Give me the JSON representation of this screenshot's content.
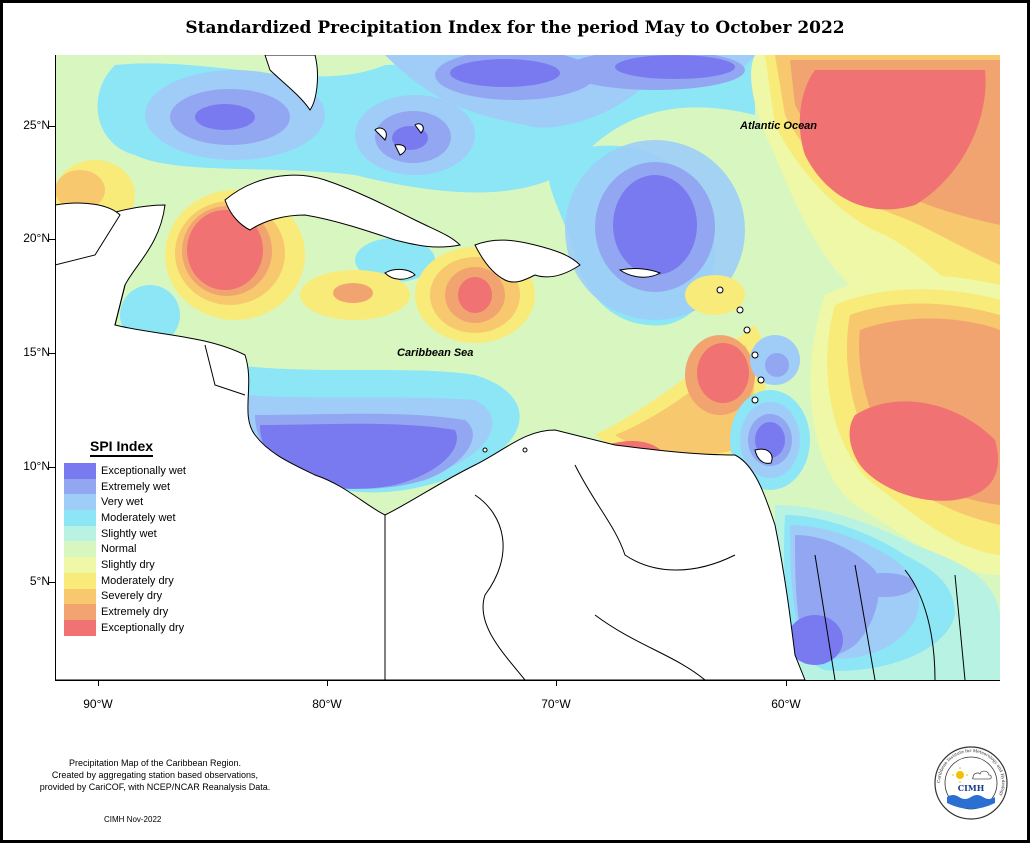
{
  "title": "Standardized Precipitation Index for the period May to October 2022",
  "map": {
    "ocean_labels": [
      "Atlantic Ocean",
      "Caribbean Sea"
    ],
    "lat_labels": [
      "25°N",
      "20°N",
      "15°N",
      "10°N",
      "5°N"
    ],
    "lon_labels": [
      "90°W",
      "80°W",
      "70°W",
      "60°W"
    ]
  },
  "legend": {
    "title": "SPI Index",
    "items": [
      {
        "label": "Exceptionally wet",
        "color": "#7a7af0"
      },
      {
        "label": "Extremely wet",
        "color": "#93a6f2"
      },
      {
        "label": "Very wet",
        "color": "#9fcdf7"
      },
      {
        "label": "Moderately wet",
        "color": "#8ce6f5"
      },
      {
        "label": "Slightly wet",
        "color": "#b8f2e2"
      },
      {
        "label": "Normal",
        "color": "#d8f7c0"
      },
      {
        "label": "Slightly dry",
        "color": "#eef8a6"
      },
      {
        "label": "Moderately dry",
        "color": "#f8eb7a"
      },
      {
        "label": "Severely dry",
        "color": "#f7c86e"
      },
      {
        "label": "Extremely dry",
        "color": "#f2a470"
      },
      {
        "label": "Exceptionally dry",
        "color": "#f07272"
      }
    ]
  },
  "footer": {
    "line1": "Precipitation Map of the Caribbean Region.",
    "line2": "Created by aggregating station based observations,",
    "line3": "provided by CariCOF, with NCEP/NCAR Reanalysis Data.",
    "date": "CIMH Nov-2022"
  },
  "logo": {
    "name": "CIMH",
    "ring_text": "Caribbean Institute for Meteorology and Hydrology"
  }
}
